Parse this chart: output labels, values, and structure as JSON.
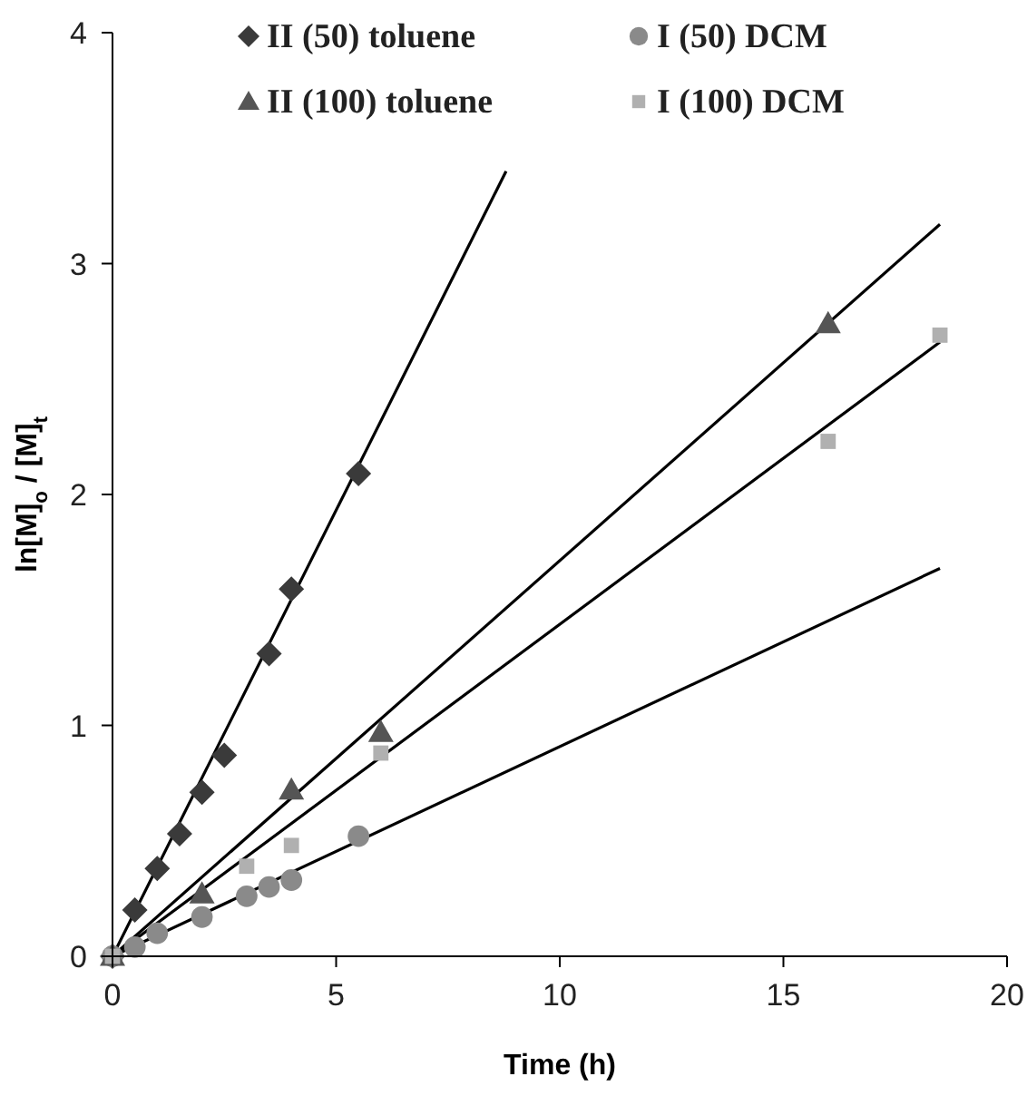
{
  "chart_data": {
    "type": "scatter",
    "xlabel": "Time (h)",
    "ylabel": "ln[M]$_{o}$ / [M]$_{t}$",
    "xlim": [
      0,
      20
    ],
    "ylim": [
      0,
      4
    ],
    "xticks": [
      0,
      5,
      10,
      15,
      20
    ],
    "yticks": [
      0,
      1,
      2,
      3,
      4
    ],
    "grid": false,
    "legend": "top",
    "series": [
      {
        "name": "II (50) toluene",
        "color": "#3a3a3a",
        "marker": "diamond",
        "x": [
          0,
          0.5,
          1,
          1.5,
          2,
          2.5,
          3.5,
          4,
          5.5
        ],
        "values": [
          0,
          0.2,
          0.38,
          0.53,
          0.71,
          0.87,
          1.31,
          1.59,
          2.09
        ]
      },
      {
        "name": "I (50) DCM",
        "color": "#8a8a8a",
        "marker": "circle",
        "x": [
          0,
          0.5,
          1,
          2,
          3,
          3.5,
          4,
          5.5
        ],
        "values": [
          0,
          0.04,
          0.1,
          0.17,
          0.26,
          0.3,
          0.33,
          0.52
        ]
      },
      {
        "name": "II (100) toluene",
        "color": "#555555",
        "marker": "triangle",
        "x": [
          0,
          2,
          4,
          6,
          16
        ],
        "values": [
          0,
          0.27,
          0.72,
          0.97,
          2.74
        ]
      },
      {
        "name": "I (100) DCM",
        "color": "#b0b0b0",
        "marker": "square",
        "x": [
          0,
          3,
          4,
          6,
          16,
          18.5
        ],
        "values": [
          0,
          0.39,
          0.48,
          0.88,
          2.23,
          2.69
        ]
      },
      {
        "type": "line",
        "color": "#000000",
        "marker": "none",
        "x": [
          0,
          8.8
        ],
        "values": [
          0,
          3.4
        ]
      },
      {
        "type": "line",
        "color": "#000000",
        "marker": "none",
        "x": [
          0,
          18.5
        ],
        "values": [
          0,
          3.17
        ]
      },
      {
        "type": "line",
        "color": "#000000",
        "marker": "none",
        "x": [
          0,
          18.5
        ],
        "values": [
          0,
          2.66
        ]
      },
      {
        "type": "line",
        "color": "#000000",
        "marker": "none",
        "x": [
          0,
          18.5
        ],
        "values": [
          0,
          1.68
        ]
      }
    ]
  }
}
